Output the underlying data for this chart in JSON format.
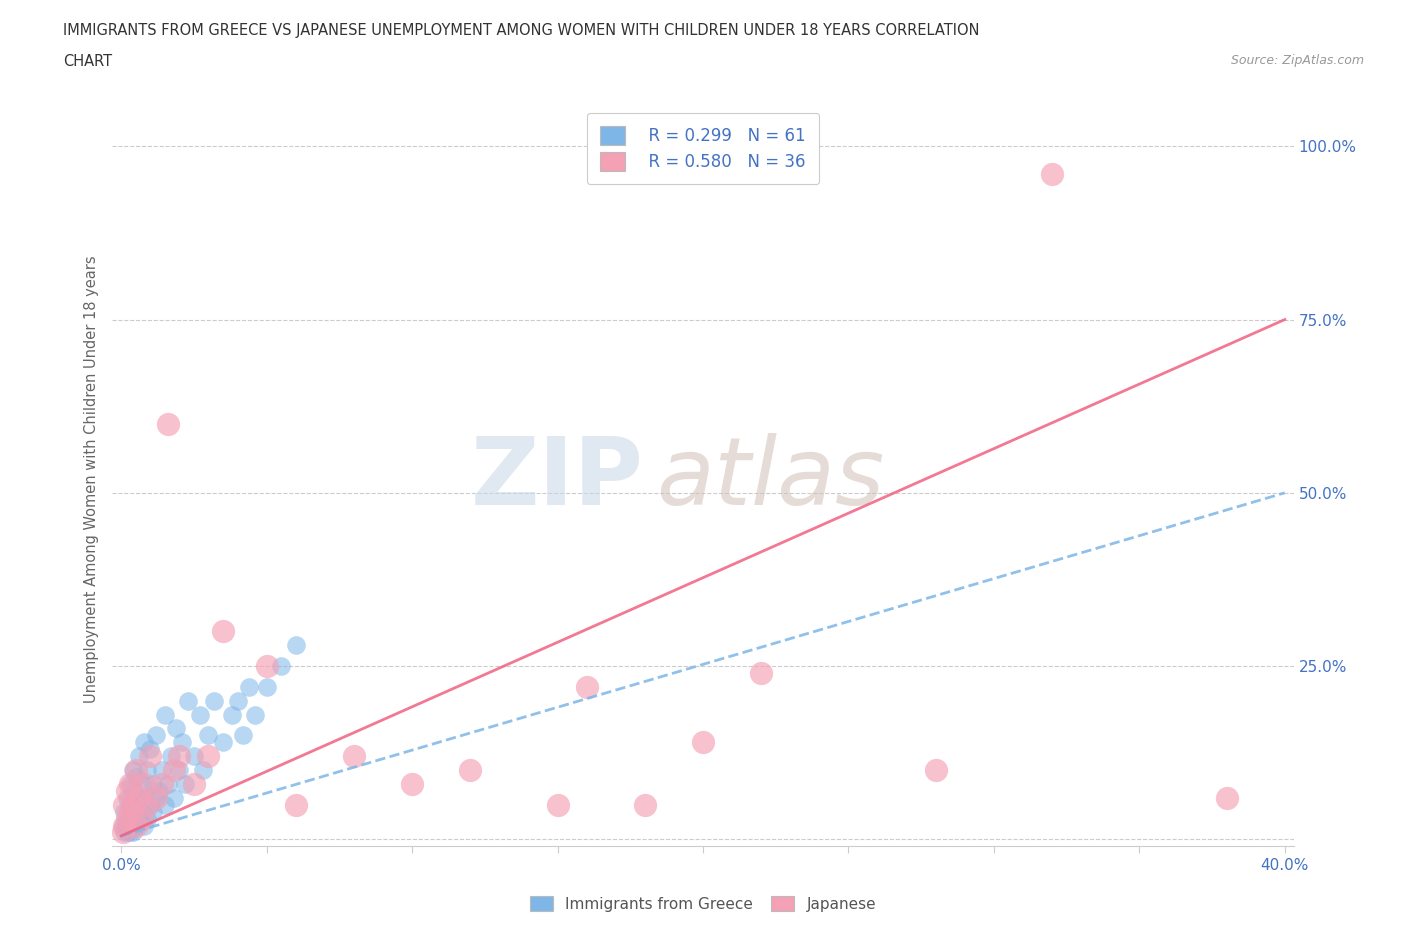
{
  "title_line1": "IMMIGRANTS FROM GREECE VS JAPANESE UNEMPLOYMENT AMONG WOMEN WITH CHILDREN UNDER 18 YEARS CORRELATION",
  "title_line2": "CHART",
  "source_text": "Source: ZipAtlas.com",
  "ylabel": "Unemployment Among Women with Children Under 18 years",
  "xlim": [
    -0.003,
    0.403
  ],
  "ylim": [
    -0.01,
    1.05
  ],
  "legend_r1": "R = 0.299",
  "legend_n1": "N = 61",
  "legend_r2": "R = 0.580",
  "legend_n2": "N = 36",
  "color_greece": "#7EB6E8",
  "color_japan": "#F4A0B5",
  "color_greece_line": "#7EB6E8",
  "color_japan_line": "#F06080",
  "background_color": "#FFFFFF",
  "watermark_zip": "ZIP",
  "watermark_atlas": "atlas",
  "greece_x": [
    0.0005,
    0.001,
    0.001,
    0.0015,
    0.002,
    0.002,
    0.002,
    0.0025,
    0.003,
    0.003,
    0.003,
    0.003,
    0.004,
    0.004,
    0.004,
    0.004,
    0.005,
    0.005,
    0.005,
    0.006,
    0.006,
    0.006,
    0.007,
    0.007,
    0.008,
    0.008,
    0.008,
    0.009,
    0.009,
    0.01,
    0.01,
    0.011,
    0.011,
    0.012,
    0.012,
    0.013,
    0.014,
    0.015,
    0.015,
    0.016,
    0.017,
    0.018,
    0.019,
    0.02,
    0.021,
    0.022,
    0.023,
    0.025,
    0.027,
    0.028,
    0.03,
    0.032,
    0.035,
    0.038,
    0.04,
    0.042,
    0.044,
    0.046,
    0.05,
    0.055,
    0.06
  ],
  "greece_y": [
    0.02,
    0.01,
    0.04,
    0.02,
    0.01,
    0.03,
    0.06,
    0.02,
    0.01,
    0.03,
    0.05,
    0.08,
    0.01,
    0.04,
    0.07,
    0.1,
    0.02,
    0.05,
    0.09,
    0.03,
    0.06,
    0.12,
    0.04,
    0.08,
    0.02,
    0.06,
    0.14,
    0.03,
    0.1,
    0.05,
    0.13,
    0.04,
    0.08,
    0.06,
    0.15,
    0.07,
    0.1,
    0.05,
    0.18,
    0.08,
    0.12,
    0.06,
    0.16,
    0.1,
    0.14,
    0.08,
    0.2,
    0.12,
    0.18,
    0.1,
    0.15,
    0.2,
    0.14,
    0.18,
    0.2,
    0.15,
    0.22,
    0.18,
    0.22,
    0.25,
    0.28
  ],
  "japan_x": [
    0.0005,
    0.001,
    0.001,
    0.002,
    0.002,
    0.003,
    0.003,
    0.004,
    0.005,
    0.005,
    0.006,
    0.007,
    0.008,
    0.009,
    0.01,
    0.012,
    0.014,
    0.016,
    0.018,
    0.02,
    0.025,
    0.03,
    0.035,
    0.05,
    0.06,
    0.08,
    0.1,
    0.12,
    0.15,
    0.16,
    0.18,
    0.2,
    0.22,
    0.28,
    0.32,
    0.38
  ],
  "japan_y": [
    0.01,
    0.02,
    0.05,
    0.03,
    0.07,
    0.04,
    0.08,
    0.05,
    0.02,
    0.1,
    0.06,
    0.03,
    0.08,
    0.05,
    0.12,
    0.06,
    0.08,
    0.6,
    0.1,
    0.12,
    0.08,
    0.12,
    0.3,
    0.25,
    0.05,
    0.12,
    0.08,
    0.1,
    0.05,
    0.22,
    0.05,
    0.14,
    0.24,
    0.1,
    0.96,
    0.06
  ],
  "greece_line_x": [
    0.0,
    0.4
  ],
  "greece_line_y": [
    0.005,
    0.5
  ],
  "japan_line_x": [
    0.0,
    0.4
  ],
  "japan_line_y": [
    0.005,
    0.75
  ]
}
